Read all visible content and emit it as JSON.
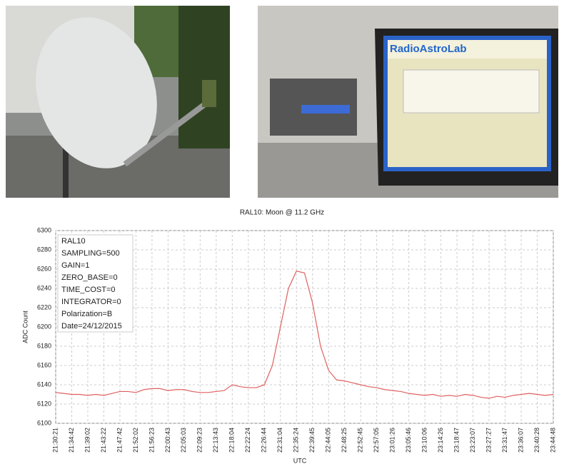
{
  "photo_texts": {
    "screen_brand": "RadioAstroLab"
  },
  "chart_data": {
    "type": "line",
    "title": "RAL10: Moon @ 11.2 GHz",
    "x_label": "UTC",
    "y_label": "ADC Count",
    "annotations": [
      "RAL10",
      "SAMPLING=500",
      "GAIN=1",
      "ZERO_BASE=0",
      "TIME_COST=0",
      "INTEGRATOR=0",
      "Polarization=B",
      "Date=24/12/2015"
    ],
    "categories": [
      "21:30:21",
      null,
      "21:34:42",
      null,
      "21:39:02",
      null,
      "21:43:22",
      null,
      "21:47:42",
      null,
      "21:52:02",
      null,
      "21:56:23",
      null,
      "22:00:43",
      null,
      "22:05:03",
      null,
      "22:09:23",
      null,
      "22:13:43",
      null,
      "22:18:04",
      null,
      "22:22:24",
      null,
      "22:26:44",
      null,
      "22:31:04",
      null,
      "22:35:24",
      null,
      "22:39:45",
      null,
      "22:44:05",
      null,
      "22:48:25",
      null,
      "22:52:45",
      null,
      "22:57:05",
      null,
      "23:01:26",
      null,
      "23:05:46",
      null,
      "23:10:06",
      null,
      "23:14:26",
      null,
      "23:18:47",
      null,
      "23:23:07",
      null,
      "23:27:27",
      null,
      "23:31:47",
      null,
      "23:36:07",
      null,
      "23:40:28",
      null,
      "23:44:48"
    ],
    "series": [
      {
        "name": "RAL10",
        "color": "#e06060",
        "values": [
          6132,
          6131,
          6130,
          6130,
          6129,
          6130,
          6129,
          6131,
          6133,
          6133,
          6132,
          6135,
          6136,
          6136,
          6134,
          6135,
          6135,
          6133,
          6132,
          6132,
          6133,
          6134,
          6140,
          6138,
          6137,
          6137,
          6140,
          6160,
          6200,
          6240,
          6258,
          6256,
          6225,
          6180,
          6155,
          6145,
          6144,
          6142,
          6140,
          6138,
          6137,
          6135,
          6134,
          6133,
          6131,
          6130,
          6129,
          6130,
          6128,
          6129,
          6128,
          6130,
          6129,
          6127,
          6126,
          6128,
          6127,
          6129,
          6130,
          6131,
          6130,
          6129,
          6130
        ]
      }
    ],
    "ylim": [
      6100,
      6300
    ],
    "yticks": [
      6100,
      6120,
      6140,
      6160,
      6180,
      6200,
      6220,
      6240,
      6260,
      6280,
      6300
    ],
    "grid": true
  }
}
